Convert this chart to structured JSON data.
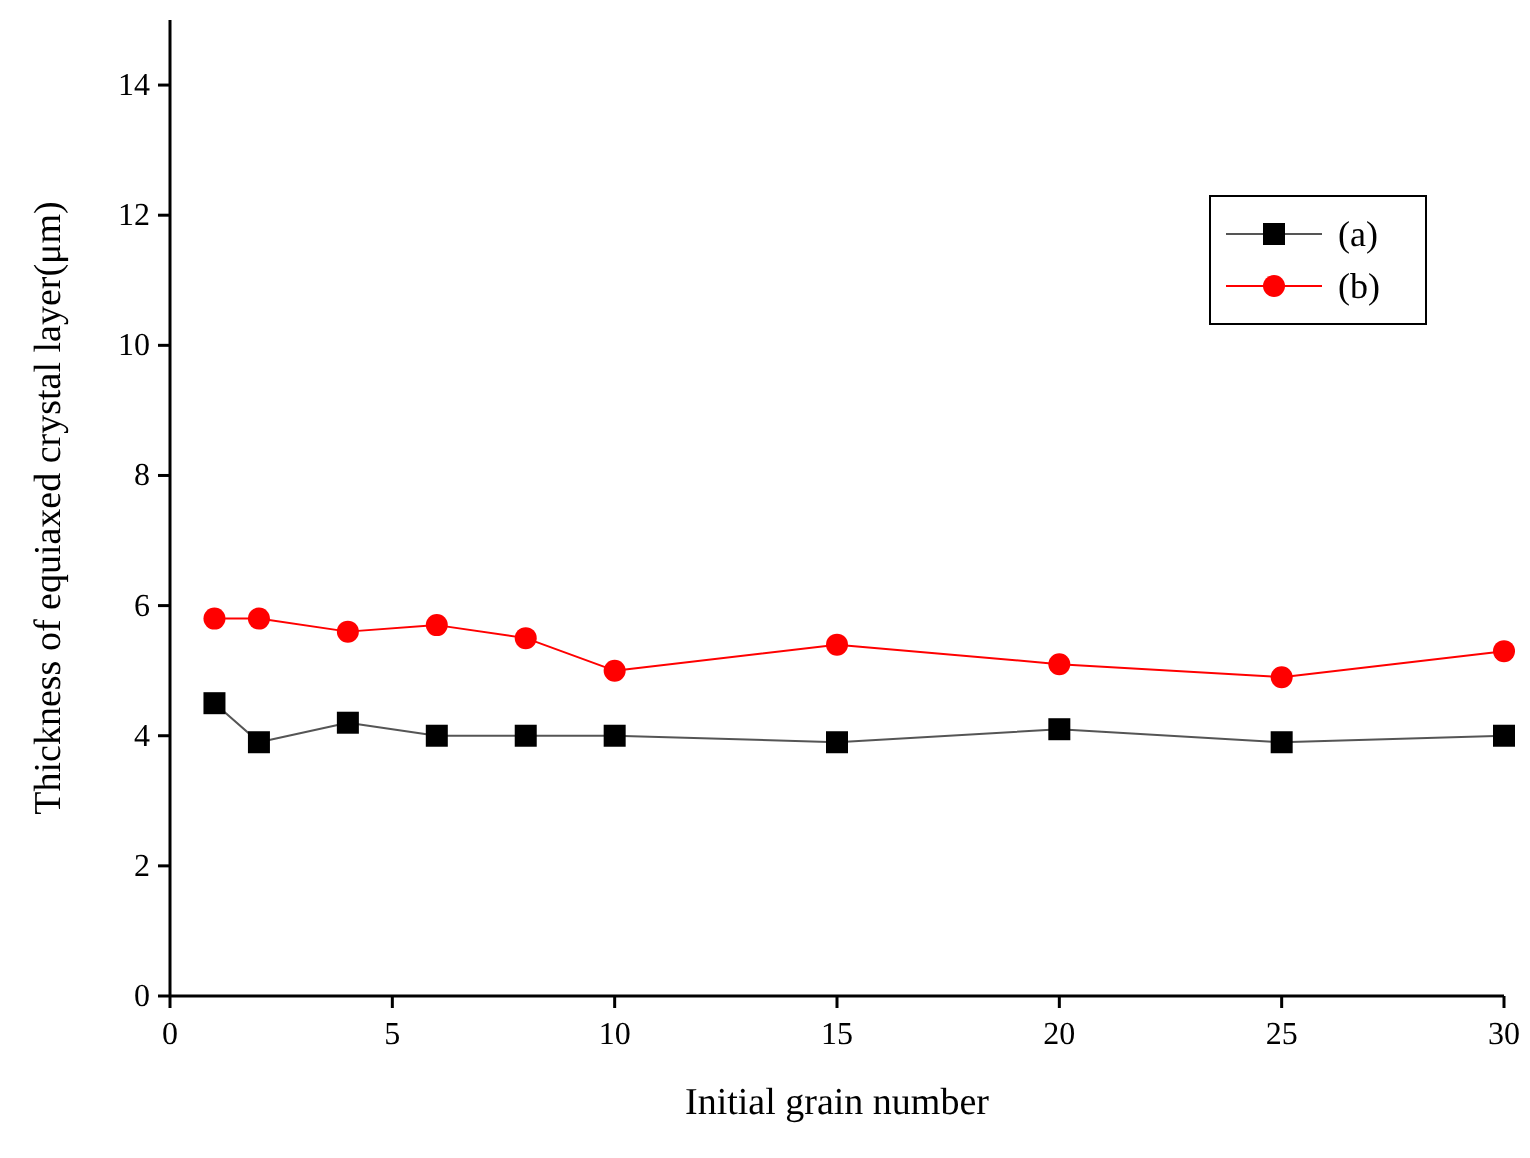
{
  "chart_data": {
    "type": "line",
    "xlabel": "Initial grain number",
    "ylabel": "Thickness of equiaxed crystal layer(μm)",
    "x": [
      1,
      2,
      4,
      6,
      8,
      10,
      15,
      20,
      25,
      30
    ],
    "series": [
      {
        "name": "(a)",
        "color": "#000000",
        "marker": "square",
        "values": [
          4.5,
          3.9,
          4.2,
          4.0,
          4.0,
          4.0,
          3.9,
          4.1,
          3.9,
          4.0
        ]
      },
      {
        "name": "(b)",
        "color": "#ff0000",
        "marker": "circle",
        "values": [
          5.8,
          5.8,
          5.6,
          5.7,
          5.5,
          5.0,
          5.4,
          5.1,
          4.9,
          5.3
        ]
      }
    ],
    "xlim": [
      0,
      30
    ],
    "xticks": [
      0,
      5,
      10,
      15,
      20,
      25,
      30
    ],
    "ylim": [
      0,
      15
    ],
    "yticks": [
      0,
      2,
      4,
      6,
      8,
      10,
      12,
      14
    ],
    "grid": false,
    "legend": "top right",
    "line_style": "solid"
  }
}
